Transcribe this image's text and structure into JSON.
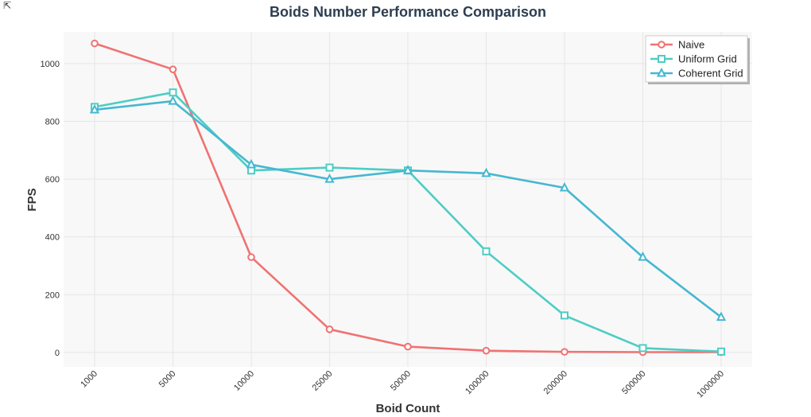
{
  "corner_icon": "expand-icon",
  "chart_data": {
    "type": "line",
    "title": "Boids Number Performance Comparison",
    "xlabel": "Boid Count",
    "ylabel": "FPS",
    "categories": [
      "1000",
      "5000",
      "10000",
      "25000",
      "50000",
      "100000",
      "200000",
      "500000",
      "1000000"
    ],
    "y_ticks": [
      0,
      200,
      400,
      600,
      800,
      1000
    ],
    "ylim": [
      -50,
      1110
    ],
    "grid": true,
    "legend_position": "top-right",
    "series": [
      {
        "name": "Naive",
        "marker": "circle",
        "color": "#f07272",
        "values": [
          1070,
          980,
          330,
          80,
          20,
          6,
          2,
          1,
          1
        ]
      },
      {
        "name": "Uniform Grid",
        "marker": "square",
        "color": "#4ecdc4",
        "values": [
          850,
          900,
          630,
          640,
          630,
          350,
          128,
          15,
          3
        ]
      },
      {
        "name": "Coherent Grid",
        "marker": "triangle",
        "color": "#45b7d1",
        "values": [
          840,
          870,
          650,
          600,
          630,
          620,
          570,
          330,
          122
        ]
      }
    ]
  }
}
